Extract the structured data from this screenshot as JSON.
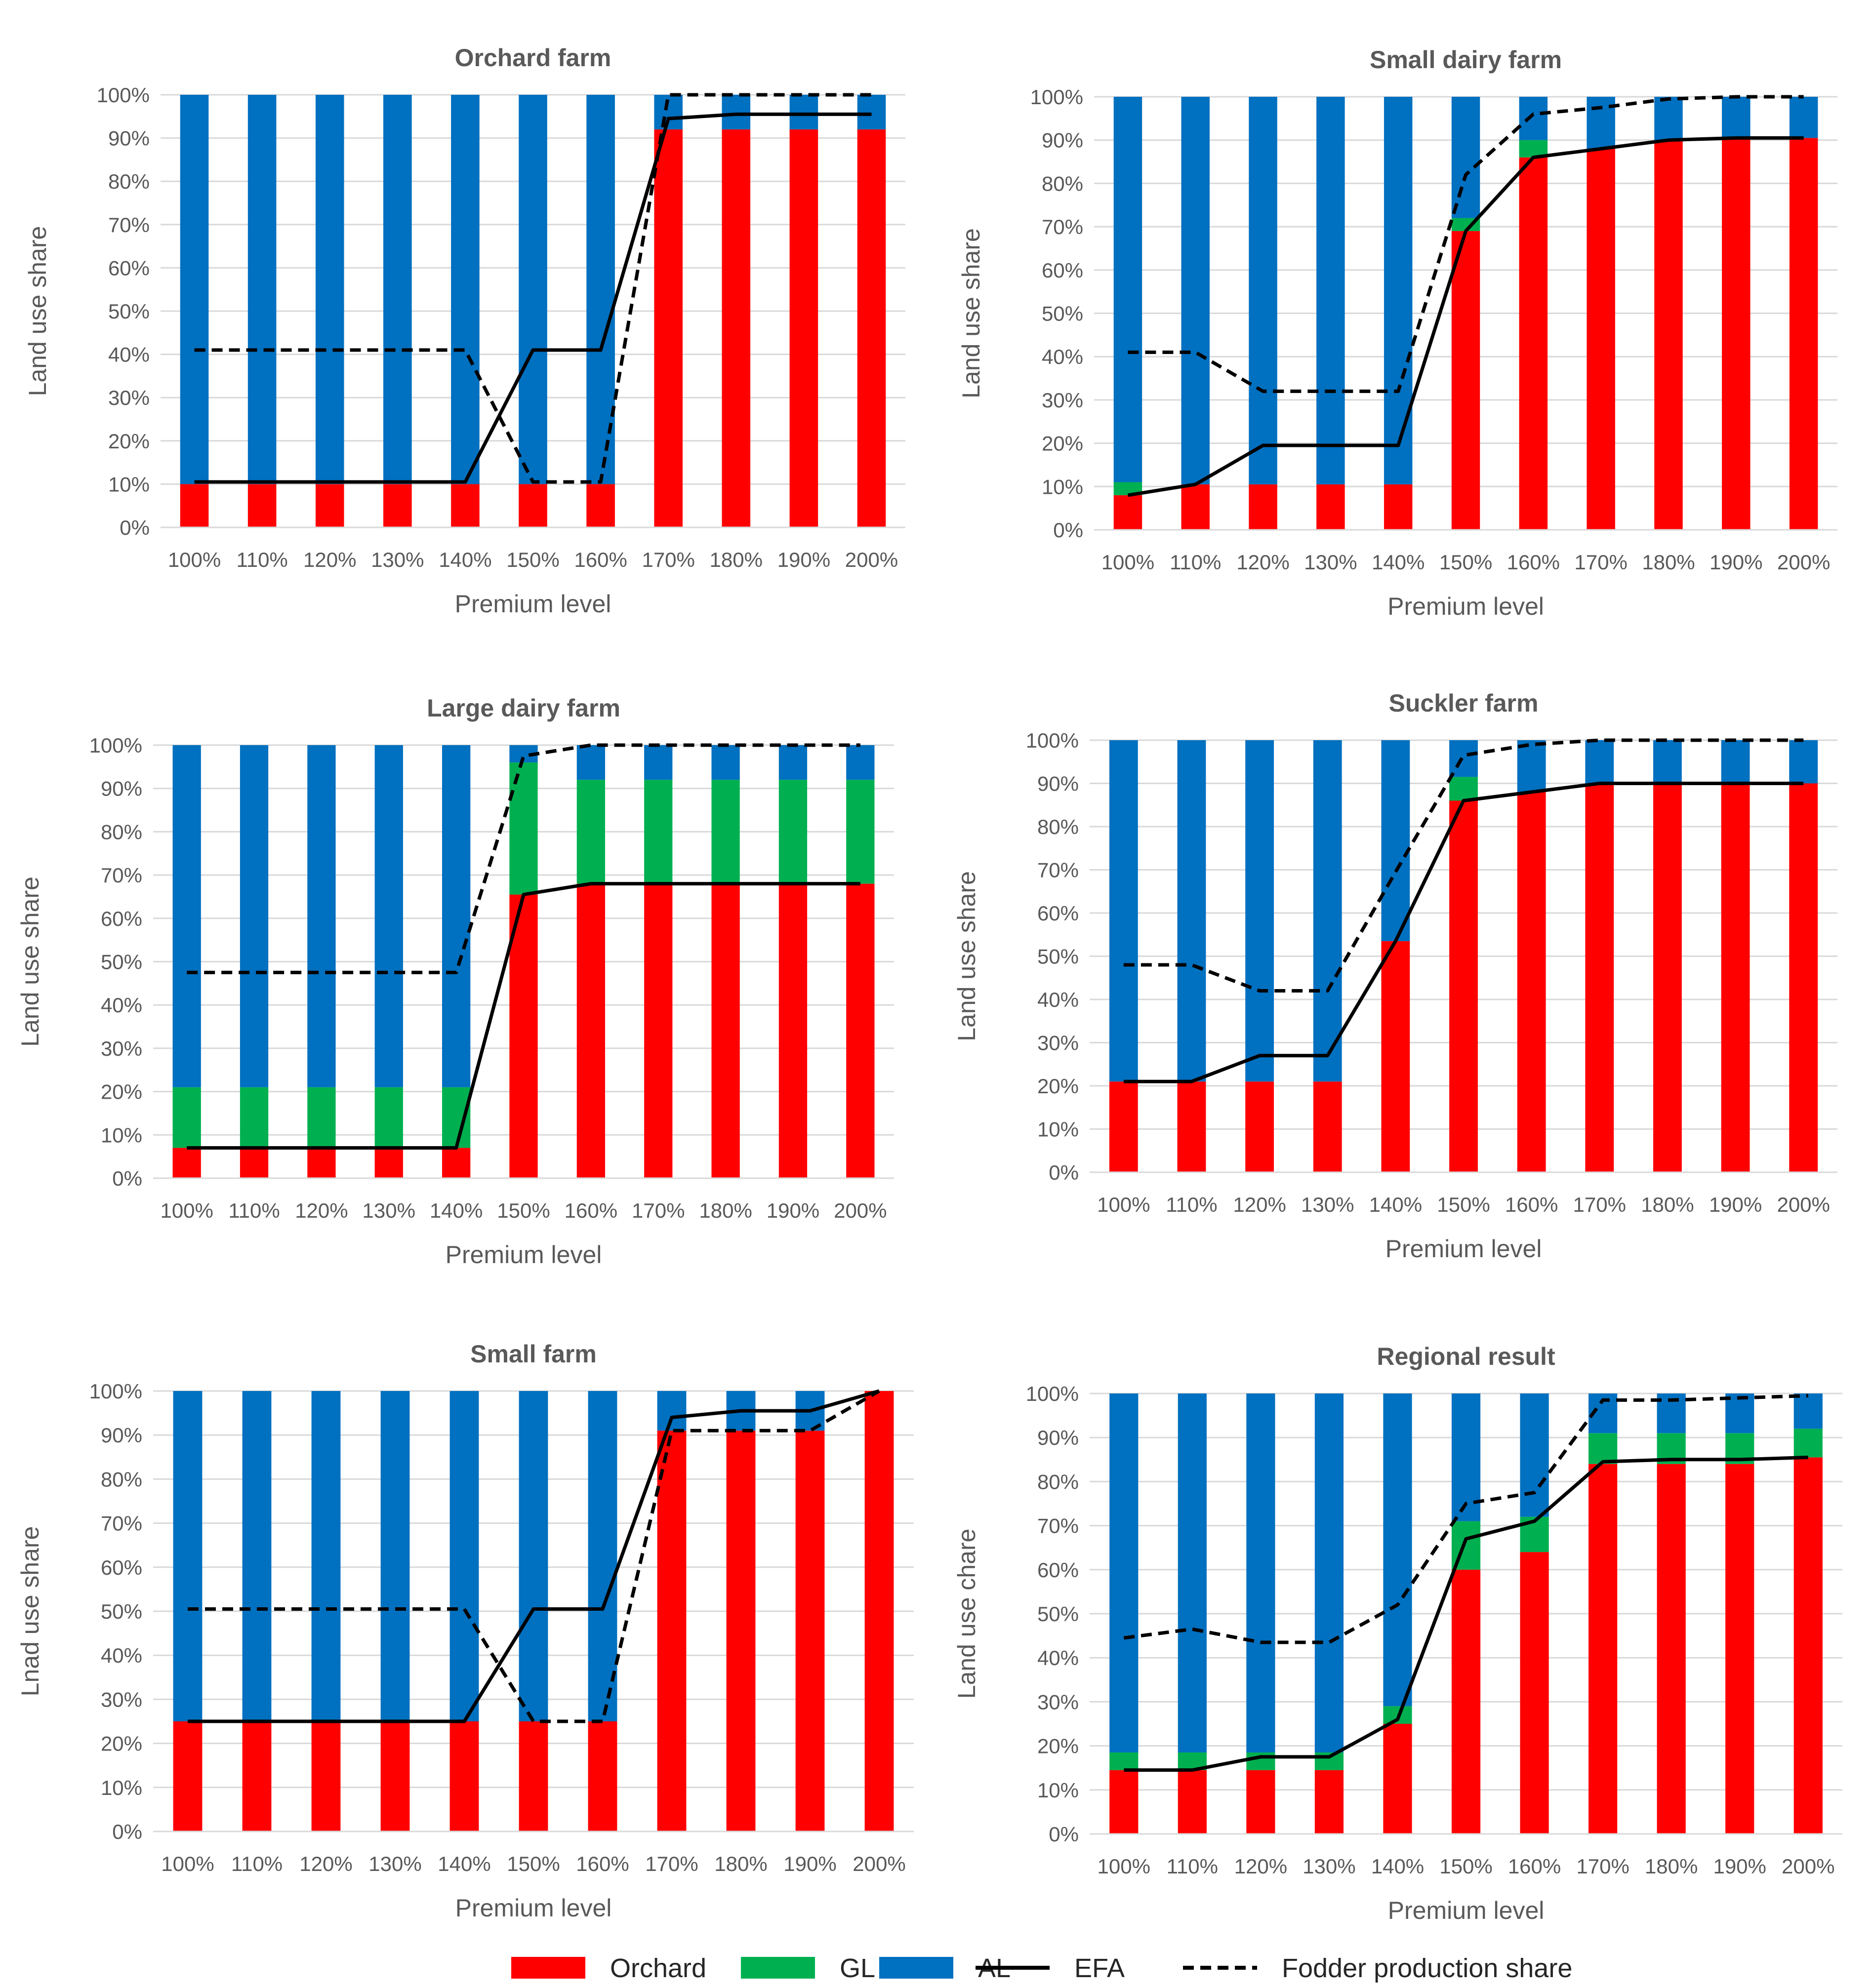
{
  "chart_data": [
    {
      "type": "bar",
      "stacked": true,
      "title": "Orchard farm",
      "xlabel": "Premium level",
      "ylabel": "Land use share",
      "categories": [
        "100%",
        "110%",
        "120%",
        "130%",
        "140%",
        "150%",
        "160%",
        "170%",
        "180%",
        "190%",
        "200%"
      ],
      "yticks": [
        "0%",
        "10%",
        "20%",
        "30%",
        "40%",
        "50%",
        "60%",
        "70%",
        "80%",
        "90%",
        "100%"
      ],
      "ylim": [
        0,
        100
      ],
      "series": [
        {
          "name": "Orchard",
          "kind": "bar",
          "color": "#ff0000",
          "values": [
            10,
            10,
            10,
            10,
            10,
            10,
            10,
            92,
            92,
            92,
            92
          ]
        },
        {
          "name": "GL",
          "kind": "bar",
          "color": "#00b050",
          "values": [
            0,
            0,
            0,
            0,
            0,
            0,
            0,
            0,
            0,
            0,
            0
          ]
        },
        {
          "name": "AL",
          "kind": "bar",
          "color": "#0070c0",
          "values": [
            90,
            90,
            90,
            90,
            90,
            90,
            90,
            8,
            8,
            8,
            8
          ]
        },
        {
          "name": "EFA",
          "kind": "line",
          "color": "#000000",
          "values": [
            10.5,
            10.5,
            10.5,
            10.5,
            10.5,
            41,
            41,
            94.5,
            95.5,
            95.5,
            95.5
          ]
        },
        {
          "name": "Fodder production share",
          "kind": "dashed-line",
          "color": "#000000",
          "values": [
            41,
            41,
            41,
            41,
            41,
            10.5,
            10.5,
            100,
            100,
            100,
            100
          ]
        }
      ]
    },
    {
      "type": "bar",
      "stacked": true,
      "title": "Small dairy farm",
      "xlabel": "Premium level",
      "ylabel": "Land use share",
      "categories": [
        "100%",
        "110%",
        "120%",
        "130%",
        "140%",
        "150%",
        "160%",
        "170%",
        "180%",
        "190%",
        "200%"
      ],
      "yticks": [
        "0%",
        "10%",
        "20%",
        "30%",
        "40%",
        "50%",
        "60%",
        "70%",
        "80%",
        "90%",
        "100%"
      ],
      "ylim": [
        0,
        100
      ],
      "series": [
        {
          "name": "Orchard",
          "kind": "bar",
          "color": "#ff0000",
          "values": [
            8,
            10.5,
            10.5,
            10.5,
            10.5,
            69,
            86,
            88,
            90,
            90.5,
            90.5
          ]
        },
        {
          "name": "GL",
          "kind": "bar",
          "color": "#00b050",
          "values": [
            3,
            0,
            0,
            0,
            0,
            3,
            4,
            0,
            0,
            0,
            0
          ]
        },
        {
          "name": "AL",
          "kind": "bar",
          "color": "#0070c0",
          "values": [
            89,
            89.5,
            89.5,
            89.5,
            89.5,
            28,
            10,
            12,
            10,
            9.5,
            9.5
          ]
        },
        {
          "name": "EFA",
          "kind": "line",
          "color": "#000000",
          "values": [
            8,
            10.5,
            19.5,
            19.5,
            19.5,
            69,
            86,
            88,
            90,
            90.5,
            90.5
          ]
        },
        {
          "name": "Fodder production share",
          "kind": "dashed-line",
          "color": "#000000",
          "values": [
            41,
            41,
            32,
            32,
            32,
            82,
            96,
            97.5,
            99.5,
            100,
            100
          ]
        }
      ]
    },
    {
      "type": "bar",
      "stacked": true,
      "title": "Large dairy farm",
      "xlabel": "Premium level",
      "ylabel": "Land use share",
      "categories": [
        "100%",
        "110%",
        "120%",
        "130%",
        "140%",
        "150%",
        "160%",
        "170%",
        "180%",
        "190%",
        "200%"
      ],
      "yticks": [
        "0%",
        "10%",
        "20%",
        "30%",
        "40%",
        "50%",
        "60%",
        "70%",
        "80%",
        "90%",
        "100%"
      ],
      "ylim": [
        0,
        100
      ],
      "series": [
        {
          "name": "Orchard",
          "kind": "bar",
          "color": "#ff0000",
          "values": [
            7,
            7,
            7,
            7,
            7,
            65.5,
            68,
            68,
            68,
            68,
            68
          ]
        },
        {
          "name": "GL",
          "kind": "bar",
          "color": "#00b050",
          "values": [
            14,
            14,
            14,
            14,
            14,
            30.5,
            24,
            24,
            24,
            24,
            24
          ]
        },
        {
          "name": "AL",
          "kind": "bar",
          "color": "#0070c0",
          "values": [
            79,
            79,
            79,
            79,
            79,
            4,
            8,
            8,
            8,
            8,
            8
          ]
        },
        {
          "name": "EFA",
          "kind": "line",
          "color": "#000000",
          "values": [
            7,
            7,
            7,
            7,
            7,
            65.5,
            68,
            68,
            68,
            68,
            68
          ]
        },
        {
          "name": "Fodder production share",
          "kind": "dashed-line",
          "color": "#000000",
          "values": [
            47.5,
            47.5,
            47.5,
            47.5,
            47.5,
            97.5,
            100,
            100,
            100,
            100,
            100
          ]
        }
      ]
    },
    {
      "type": "bar",
      "stacked": true,
      "title": "Suckler farm",
      "xlabel": "Premium level",
      "ylabel": "Land use share",
      "categories": [
        "100%",
        "110%",
        "120%",
        "130%",
        "140%",
        "150%",
        "160%",
        "170%",
        "180%",
        "190%",
        "200%"
      ],
      "yticks": [
        "0%",
        "10%",
        "20%",
        "30%",
        "40%",
        "50%",
        "60%",
        "70%",
        "80%",
        "90%",
        "100%"
      ],
      "ylim": [
        0,
        100
      ],
      "series": [
        {
          "name": "Orchard",
          "kind": "bar",
          "color": "#ff0000",
          "values": [
            21,
            21,
            21,
            21,
            53.5,
            86,
            88,
            90,
            90,
            90,
            90
          ]
        },
        {
          "name": "GL",
          "kind": "bar",
          "color": "#00b050",
          "values": [
            0,
            0,
            0,
            0,
            0,
            5.5,
            0,
            0,
            0,
            0,
            0
          ]
        },
        {
          "name": "AL",
          "kind": "bar",
          "color": "#0070c0",
          "values": [
            79,
            79,
            79,
            79,
            46.5,
            8.5,
            12,
            10,
            10,
            10,
            10
          ]
        },
        {
          "name": "EFA",
          "kind": "line",
          "color": "#000000",
          "values": [
            21,
            21,
            27,
            27,
            53.5,
            86,
            88,
            90,
            90,
            90,
            90
          ]
        },
        {
          "name": "Fodder production share",
          "kind": "dashed-line",
          "color": "#000000",
          "values": [
            48,
            48,
            42,
            42,
            69.5,
            96.5,
            99,
            100,
            100,
            100,
            100
          ]
        }
      ]
    },
    {
      "type": "bar",
      "stacked": true,
      "title": "Small farm",
      "xlabel": "Premium level",
      "ylabel": "Lnad use share",
      "categories": [
        "100%",
        "110%",
        "120%",
        "130%",
        "140%",
        "150%",
        "160%",
        "170%",
        "180%",
        "190%",
        "200%"
      ],
      "yticks": [
        "0%",
        "10%",
        "20%",
        "30%",
        "40%",
        "50%",
        "60%",
        "70%",
        "80%",
        "90%",
        "100%"
      ],
      "ylim": [
        0,
        100
      ],
      "series": [
        {
          "name": "Orchard",
          "kind": "bar",
          "color": "#ff0000",
          "values": [
            25,
            25,
            25,
            25,
            25,
            25,
            25,
            91,
            91,
            91,
            100
          ]
        },
        {
          "name": "GL",
          "kind": "bar",
          "color": "#00b050",
          "values": [
            0,
            0,
            0,
            0,
            0,
            0,
            0,
            0,
            0,
            0,
            0
          ]
        },
        {
          "name": "AL",
          "kind": "bar",
          "color": "#0070c0",
          "values": [
            75,
            75,
            75,
            75,
            75,
            75,
            75,
            9,
            9,
            9,
            0
          ]
        },
        {
          "name": "EFA",
          "kind": "line",
          "color": "#000000",
          "values": [
            25,
            25,
            25,
            25,
            25,
            50.5,
            50.5,
            94,
            95.5,
            95.5,
            100
          ]
        },
        {
          "name": "Fodder production share",
          "kind": "dashed-line",
          "color": "#000000",
          "values": [
            50.5,
            50.5,
            50.5,
            50.5,
            50.5,
            25,
            25,
            91,
            91,
            91,
            100
          ]
        }
      ]
    },
    {
      "type": "bar",
      "stacked": true,
      "title": "Regional result",
      "xlabel": "Premium level",
      "ylabel": "Land use chare",
      "categories": [
        "100%",
        "110%",
        "120%",
        "130%",
        "140%",
        "150%",
        "160%",
        "170%",
        "180%",
        "190%",
        "200%"
      ],
      "yticks": [
        "0%",
        "10%",
        "20%",
        "30%",
        "40%",
        "50%",
        "60%",
        "70%",
        "80%",
        "90%",
        "100%"
      ],
      "ylim": [
        0,
        100
      ],
      "series": [
        {
          "name": "Orchard",
          "kind": "bar",
          "color": "#ff0000",
          "values": [
            14.5,
            14.5,
            14.5,
            14.5,
            25,
            60,
            64,
            84,
            84,
            84,
            85.5
          ]
        },
        {
          "name": "GL",
          "kind": "bar",
          "color": "#00b050",
          "values": [
            4,
            4,
            4,
            4,
            4,
            11,
            8,
            7,
            7,
            7,
            6.5
          ]
        },
        {
          "name": "AL",
          "kind": "bar",
          "color": "#0070c0",
          "values": [
            81.5,
            81.5,
            81.5,
            81.5,
            71,
            29,
            28,
            9,
            9,
            9,
            8
          ]
        },
        {
          "name": "EFA",
          "kind": "line",
          "color": "#000000",
          "values": [
            14.5,
            14.5,
            17.5,
            17.5,
            26,
            67,
            71,
            84.5,
            85,
            85,
            85.5
          ]
        },
        {
          "name": "Fodder production share",
          "kind": "dashed-line",
          "color": "#000000",
          "values": [
            44.5,
            46.5,
            43.5,
            43.5,
            52,
            75,
            77.5,
            98.5,
            98.5,
            99,
            99.5
          ]
        }
      ]
    }
  ],
  "legend": {
    "items": [
      {
        "label": "Orchard",
        "kind": "bar",
        "color": "#ff0000"
      },
      {
        "label": "GL",
        "kind": "bar",
        "color": "#00b050"
      },
      {
        "label": "AL",
        "kind": "bar",
        "color": "#0070c0"
      },
      {
        "label": "EFA",
        "kind": "line",
        "color": "#000000"
      },
      {
        "label": "Fodder production share",
        "kind": "dashed-line",
        "color": "#000000"
      }
    ]
  }
}
